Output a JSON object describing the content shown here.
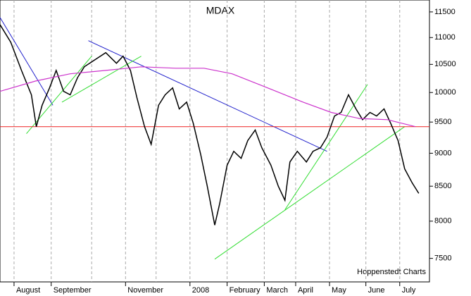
{
  "chart_data": {
    "type": "line",
    "title": "MDAX",
    "annotation": "Hoppenstedt Charts",
    "log_y": true,
    "grid": true,
    "xlim": [
      0,
      52
    ],
    "ylim": [
      7200,
      11740
    ],
    "yticks": [
      7500,
      8000,
      8500,
      9000,
      9500,
      10000,
      10500,
      11000,
      11500
    ],
    "xticks": [
      {
        "value": 1.7,
        "label": "August"
      },
      {
        "value": 6.2,
        "label": "September"
      },
      {
        "value": 15.2,
        "label": "November"
      },
      {
        "value": 23.0,
        "label": "2008"
      },
      {
        "value": 27.5,
        "label": "February"
      },
      {
        "value": 32.0,
        "label": "March"
      },
      {
        "value": 35.8,
        "label": "April"
      },
      {
        "value": 39.9,
        "label": "May"
      },
      {
        "value": 44.3,
        "label": "June"
      },
      {
        "value": 48.4,
        "label": "July"
      }
    ],
    "xgrid": [
      1.7,
      6.2,
      11.1,
      15.2,
      18.9,
      23.0,
      27.5,
      32.0,
      35.8,
      39.9,
      44.3,
      48.4
    ],
    "series": [
      {
        "color": "#000000",
        "x": [
          0,
          1.3,
          2.6,
          3.8,
          4.4,
          5.1,
          6.0,
          6.8,
          7.7,
          8.5,
          9.4,
          10.2,
          11.5,
          12.8,
          14.1,
          14.9,
          15.8,
          16.6,
          17.5,
          18.3,
          19.2,
          20.0,
          20.9,
          21.7,
          22.6,
          23.4,
          24.3,
          25.1,
          26.0,
          26.6,
          27.5,
          28.3,
          29.2,
          30.0,
          30.9,
          31.7,
          32.8,
          33.7,
          34.5,
          35.1,
          36.0,
          37.1,
          37.9,
          38.8,
          39.6,
          40.5,
          41.3,
          42.2,
          43.1,
          43.9,
          44.8,
          45.6,
          46.5,
          47.3,
          48.2,
          49.0,
          49.9,
          50.7
        ],
        "values": [
          11250,
          10910,
          10390,
          9960,
          9425,
          9780,
          10080,
          10390,
          10020,
          9960,
          10265,
          10455,
          10585,
          10715,
          10520,
          10650,
          10390,
          9900,
          9425,
          9140,
          9780,
          9960,
          10080,
          9720,
          9835,
          9480,
          8980,
          8500,
          7945,
          8245,
          8815,
          9030,
          8920,
          9200,
          9370,
          9085,
          8815,
          8500,
          8295,
          8865,
          9030,
          8865,
          9030,
          9085,
          9255,
          9600,
          9660,
          9960,
          9720,
          9540,
          9660,
          9600,
          9720,
          9480,
          9200,
          8760,
          8550,
          8395
        ]
      },
      {
        "color": "#cc33cc",
        "x": [
          0,
          4.3,
          8.5,
          12.8,
          17.1,
          21.3,
          24.7,
          28.1,
          32.4,
          36.7,
          40.1,
          43.5,
          46.9,
          50.3
        ],
        "values": [
          10020,
          10200,
          10330,
          10390,
          10455,
          10430,
          10430,
          10330,
          10080,
          9835,
          9660,
          9560,
          9540,
          9425
        ]
      }
    ],
    "trend_lines": [
      {
        "color": "#2222cc",
        "x": [
          0,
          6.4
        ],
        "values": [
          11390,
          9780
        ]
      },
      {
        "color": "#2222cc",
        "x": [
          10.7,
          39.6
        ],
        "values": [
          10940,
          9030
        ]
      },
      {
        "color": "#33dd33",
        "x": [
          3.2,
          11.1
        ],
        "values": [
          9310,
          10650
        ]
      },
      {
        "color": "#33dd33",
        "x": [
          7.5,
          17.1
        ],
        "values": [
          9835,
          10650
        ]
      },
      {
        "color": "#33dd33",
        "x": [
          34.5,
          44.5
        ],
        "values": [
          8160,
          10140
        ]
      },
      {
        "color": "#33dd33",
        "x": [
          26.0,
          49.0
        ],
        "values": [
          7490,
          9425
        ]
      },
      {
        "color": "#ee2222",
        "x": [
          0,
          52
        ],
        "values": [
          9425,
          9425
        ]
      }
    ]
  }
}
